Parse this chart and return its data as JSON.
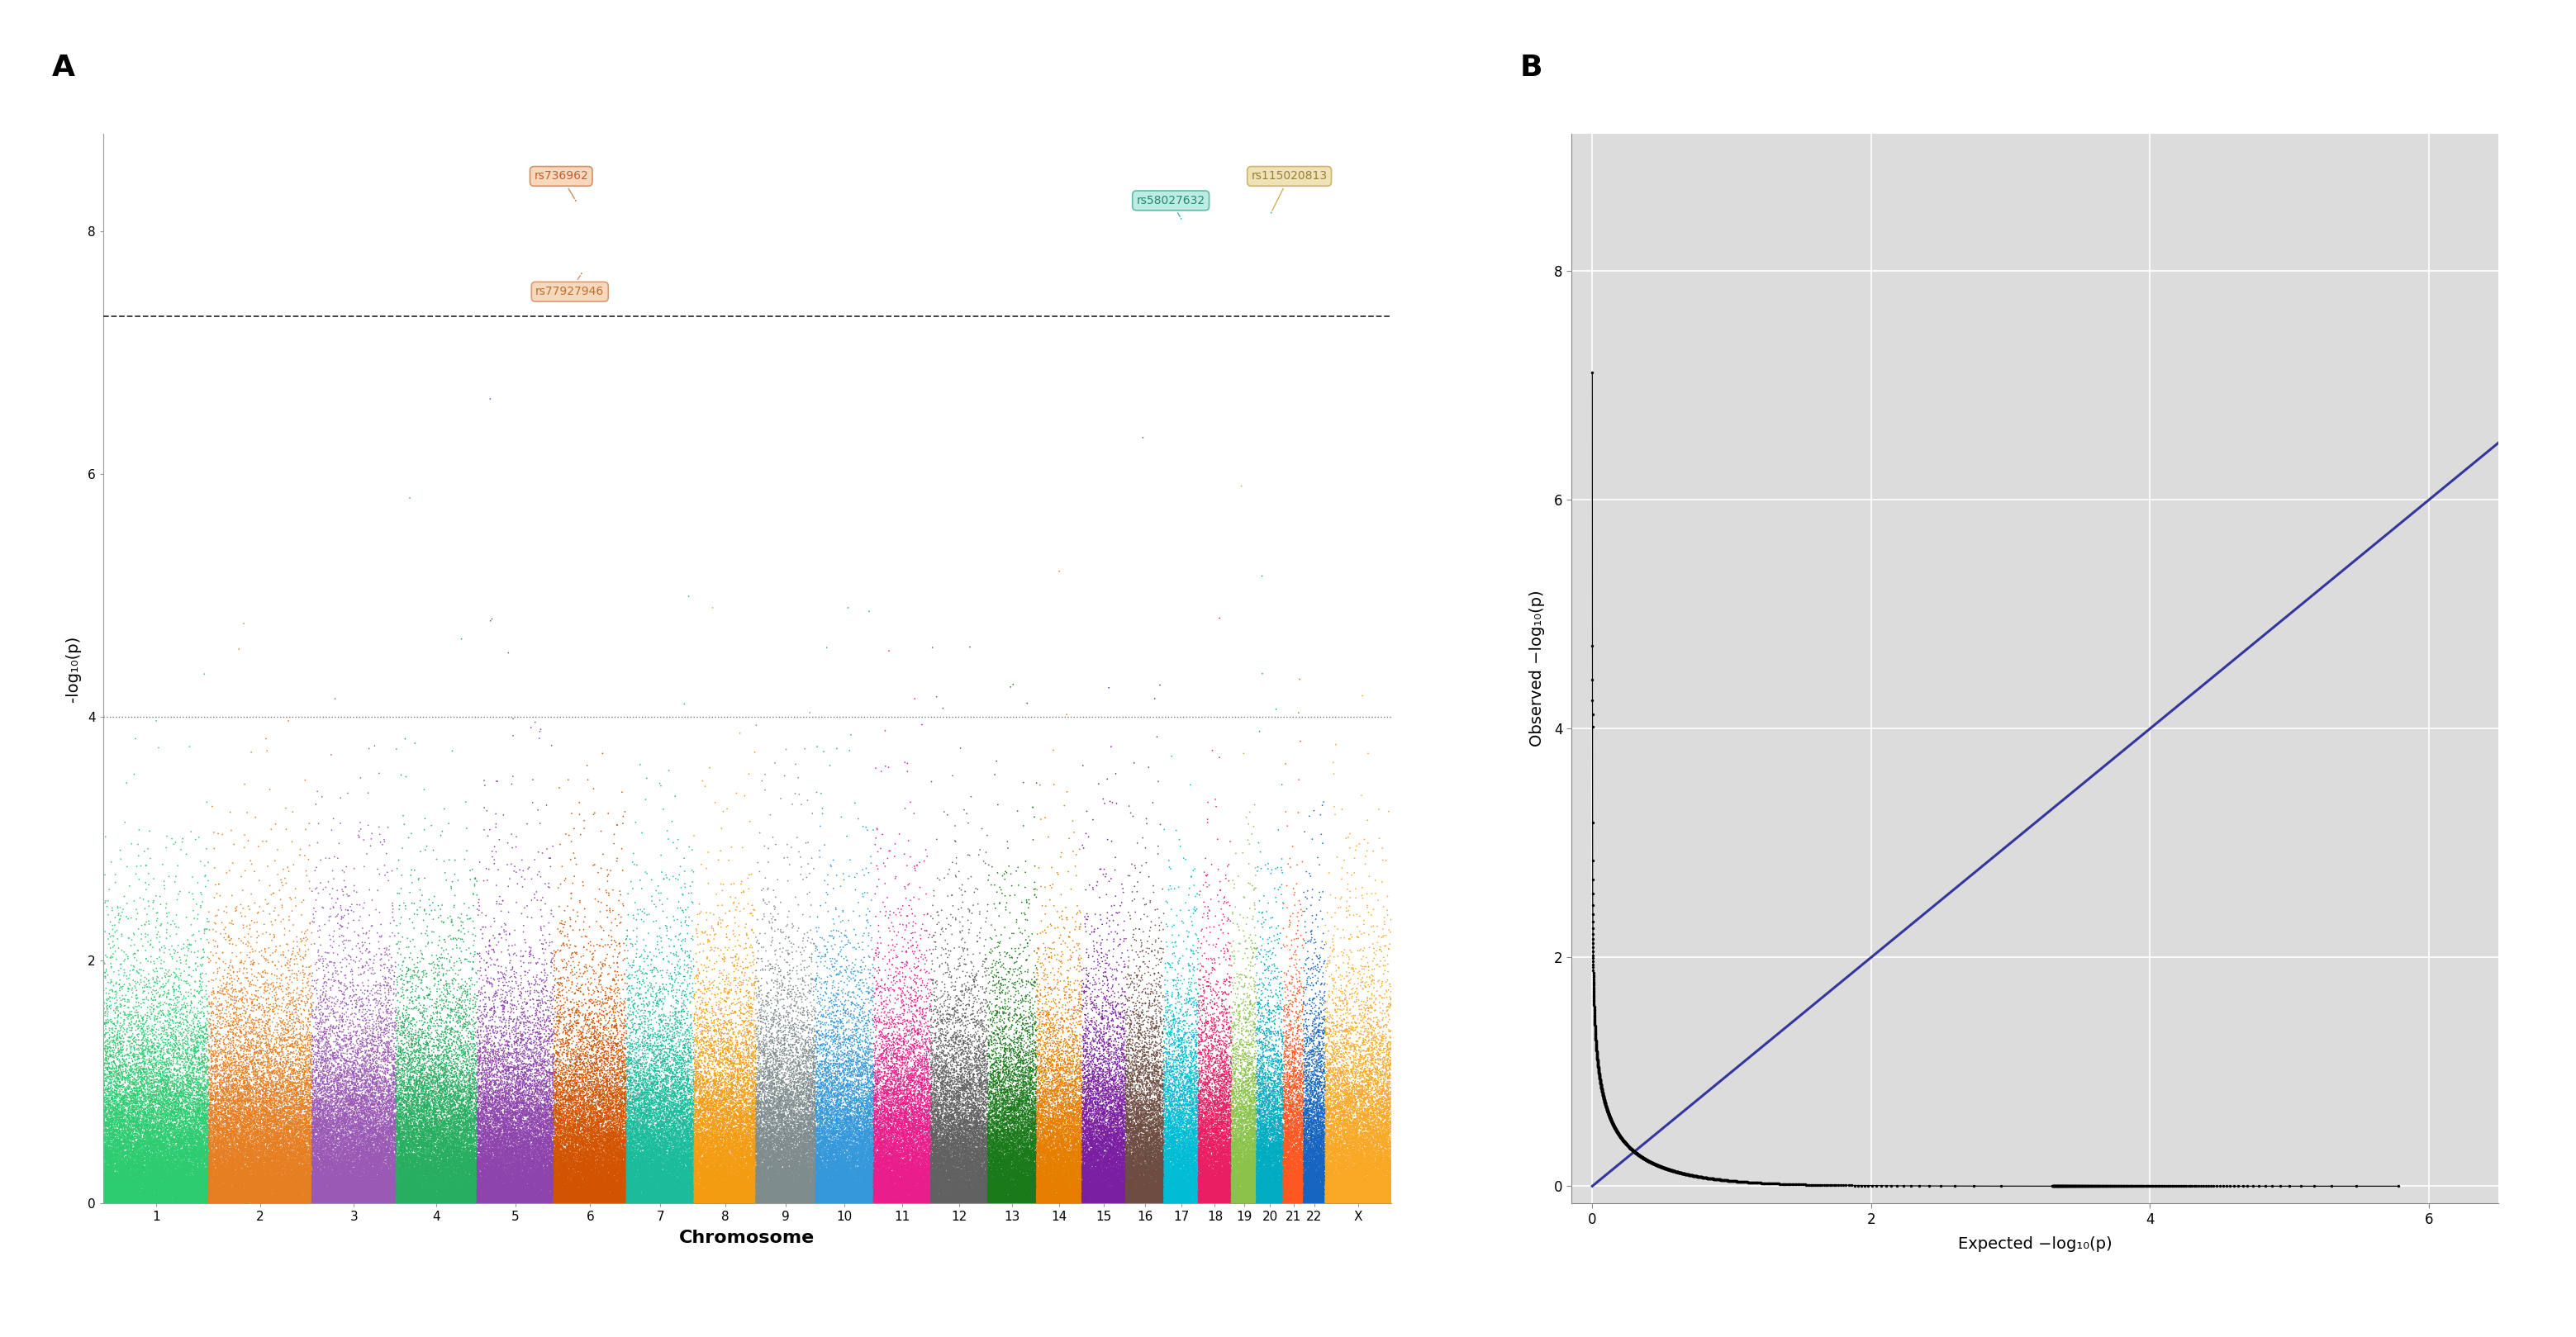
{
  "panel_a_label": "A",
  "panel_b_label": "B",
  "manhattan_xlabel": "Chromosome",
  "manhattan_ylabel": "-log₁₀(p)",
  "manhattan_sig_line": 7.3,
  "manhattan_suggestive_line": 4.0,
  "manhattan_ylim": [
    0,
    8.8
  ],
  "manhattan_yticks": [
    0,
    2,
    4,
    6,
    8
  ],
  "chr_colors": [
    "#2ecc71",
    "#e67e22",
    "#9b59b6",
    "#27ae60",
    "#8e44ad",
    "#d35400",
    "#1abc9c",
    "#f39c12",
    "#7f8c8d",
    "#3498db",
    "#e91e8c",
    "#616161",
    "#1a7a1a",
    "#e67e00",
    "#7b1fa2",
    "#6d4c41",
    "#00bcd4",
    "#e91e63",
    "#8bc34a",
    "#00acc1",
    "#ff5722",
    "#1565c0",
    "#f9a825"
  ],
  "annotations": [
    {
      "label": "rs736962",
      "fc": "#f8d5b8",
      "ec": "#d08860",
      "tc": "#c06030"
    },
    {
      "label": "rs77927946",
      "fc": "#f8d5b8",
      "ec": "#d4956a",
      "tc": "#b87030"
    },
    {
      "label": "rs58027632",
      "fc": "#b8ece0",
      "ec": "#50b8a0",
      "tc": "#208870"
    },
    {
      "label": "rs115020813",
      "fc": "#ede0b0",
      "ec": "#c8b060",
      "tc": "#988030"
    }
  ],
  "qq_xlabel": "Expected −log₁₀(p)",
  "qq_ylabel": "Observed −log₁₀(p)",
  "qq_xlim": [
    -0.15,
    6.5
  ],
  "qq_ylim": [
    -0.15,
    9.2
  ],
  "qq_xticks": [
    0,
    2,
    4,
    6
  ],
  "qq_yticks": [
    0,
    2,
    4,
    6,
    8
  ],
  "qq_ref_line_color": "#3535a0",
  "background_color": "#dcdcdc"
}
